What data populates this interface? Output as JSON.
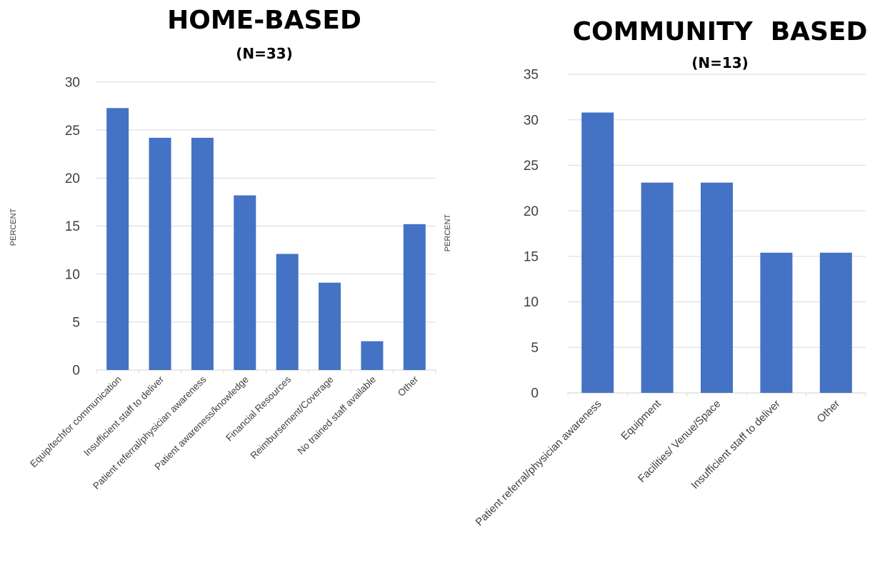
{
  "chart_data": [
    {
      "type": "bar",
      "title": "HOME-BASED",
      "subtitle": "(N=33)",
      "ylabel": "PERCENT",
      "xlabel": "",
      "ylim": [
        0,
        30
      ],
      "yticks": [
        0,
        5,
        10,
        15,
        20,
        25,
        30
      ],
      "grid": true,
      "bar_color": "#4472C4",
      "categories": [
        "Equip/techfor communication",
        "Insufficient staff to deliver",
        "Patient referral/physician awareness",
        "Patient awareness/knowledge",
        "Financial Resources",
        "Reimbursement/Coverage",
        "No trained staff available",
        "Other"
      ],
      "values": [
        27.3,
        24.2,
        24.2,
        18.2,
        12.1,
        9.1,
        3.0,
        15.2
      ]
    },
    {
      "type": "bar",
      "title": "COMMUNITY  BASED",
      "subtitle": "(N=13)",
      "ylabel": "PERCENT",
      "xlabel": "",
      "ylim": [
        0,
        35
      ],
      "yticks": [
        0,
        5,
        10,
        15,
        20,
        25,
        30,
        35
      ],
      "grid": true,
      "bar_color": "#4472C4",
      "categories": [
        "Patient referral/physician awareness",
        "Equipment",
        "Facilities/ Venue/Space",
        "Insufficient staff to deliver",
        "Other"
      ],
      "values": [
        30.8,
        23.1,
        23.1,
        15.4,
        15.4
      ]
    }
  ]
}
